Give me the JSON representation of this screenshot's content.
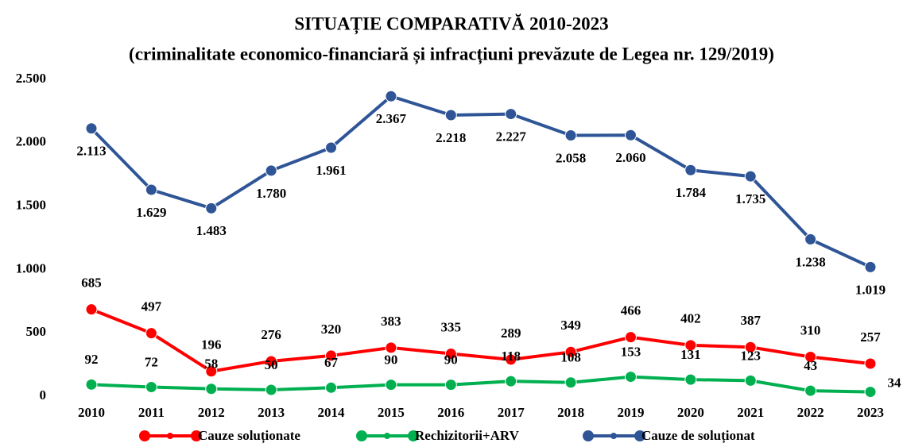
{
  "chart_data": {
    "type": "line",
    "title": "SITUAȚIE COMPARATIVĂ 2010-2023",
    "subtitle": "(criminalitate economico-financiară și infracțiuni prevăzute de Legea nr. 129/2019)",
    "categories": [
      "2010",
      "2011",
      "2012",
      "2013",
      "2014",
      "2015",
      "2016",
      "2017",
      "2018",
      "2019",
      "2020",
      "2021",
      "2022",
      "2023"
    ],
    "series": [
      {
        "name": "Cauze soluționate",
        "color": "#ff0000",
        "values": [
          685,
          497,
          196,
          276,
          320,
          383,
          335,
          289,
          349,
          466,
          402,
          387,
          310,
          257
        ]
      },
      {
        "name": "Rechizitorii+ARV",
        "color": "#00b050",
        "values": [
          92,
          72,
          58,
          50,
          67,
          90,
          90,
          118,
          108,
          153,
          131,
          123,
          43,
          34
        ]
      },
      {
        "name": "Cauze de soluționat",
        "color": "#2f5597",
        "values": [
          2113,
          1629,
          1483,
          1780,
          1961,
          2367,
          2218,
          2227,
          2058,
          2060,
          1784,
          1735,
          1238,
          1019
        ],
        "value_labels": [
          "2.113",
          "1.629",
          "1.483",
          "1.780",
          "1.961",
          "2.367",
          "2.218",
          "2.227",
          "2.058",
          "2.060",
          "1.784",
          "1.735",
          "1.238",
          "1.019"
        ]
      }
    ],
    "ylim": [
      0,
      2500
    ],
    "yticks": [
      0,
      500,
      {
        "value": 1000,
        "label": "1.000"
      },
      {
        "value": 1500,
        "label": "1.500"
      },
      {
        "value": 2000,
        "label": "2.000"
      },
      {
        "value": 2500,
        "label": "2.500"
      }
    ],
    "legend": "bottom"
  }
}
